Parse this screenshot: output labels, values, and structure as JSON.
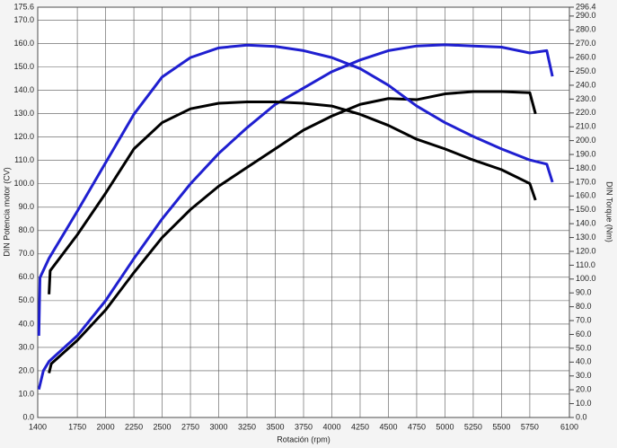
{
  "chart_data": {
    "type": "line",
    "xlabel": "Rotación (rpm)",
    "ylabel": "DIN Potencia motor (CV)",
    "y2label": "DIN Torque (Nm)",
    "xlim": [
      1400,
      6100
    ],
    "xticks": [
      1400,
      1750,
      2000,
      2250,
      2500,
      2750,
      3000,
      3250,
      3500,
      3750,
      4000,
      4250,
      4500,
      4750,
      5000,
      5250,
      5500,
      5750,
      6100
    ],
    "ylim": [
      0,
      175.6
    ],
    "yticks": [
      {
        "value": 0,
        "label": "0.0"
      },
      {
        "value": 10,
        "label": "10.0"
      },
      {
        "value": 20,
        "label": "20.0"
      },
      {
        "value": 30,
        "label": "30.0"
      },
      {
        "value": 40,
        "label": "40.0"
      },
      {
        "value": 50,
        "label": "50.0"
      },
      {
        "value": 60,
        "label": "60.0"
      },
      {
        "value": 70,
        "label": "70.0"
      },
      {
        "value": 80,
        "label": "80.0"
      },
      {
        "value": 90,
        "label": "90.0"
      },
      {
        "value": 100,
        "label": "100.0"
      },
      {
        "value": 110,
        "label": "110.0"
      },
      {
        "value": 120,
        "label": "120.0"
      },
      {
        "value": 130,
        "label": "130.0"
      },
      {
        "value": 140,
        "label": "140.0"
      },
      {
        "value": 150,
        "label": "150.0"
      },
      {
        "value": 160,
        "label": "160.0"
      },
      {
        "value": 170,
        "label": "170.0"
      },
      175.6
    ],
    "y2lim": [
      0,
      296.4
    ],
    "y2ticks": [
      {
        "value": 0,
        "label": "0.0"
      },
      {
        "value": 10,
        "label": "10.0"
      },
      {
        "value": 20,
        "label": "20.0"
      },
      {
        "value": 30,
        "label": "30.0"
      },
      {
        "value": 40,
        "label": "40.0"
      },
      {
        "value": 50,
        "label": "50.0"
      },
      {
        "value": 60,
        "label": "60.0"
      },
      {
        "value": 70,
        "label": "70.0"
      },
      {
        "value": 80,
        "label": "80.0"
      },
      {
        "value": 90,
        "label": "90.0"
      },
      {
        "value": 100,
        "label": "100.0"
      },
      {
        "value": 110,
        "label": "110.0"
      },
      {
        "value": 120,
        "label": "120.0"
      },
      {
        "value": 130,
        "label": "130.0"
      },
      {
        "value": 140,
        "label": "140.0"
      },
      {
        "value": 150,
        "label": "150.0"
      },
      {
        "value": 160,
        "label": "160.0"
      },
      {
        "value": 170,
        "label": "170.0"
      },
      {
        "value": 180,
        "label": "180.0"
      },
      {
        "value": 190,
        "label": "190.0"
      },
      {
        "value": 200,
        "label": "200.0"
      },
      {
        "value": 210,
        "label": "210.0"
      },
      {
        "value": 220,
        "label": "220.0"
      },
      {
        "value": 230,
        "label": "230.0"
      },
      {
        "value": 240,
        "label": "240.0"
      },
      {
        "value": 250,
        "label": "250.0"
      },
      {
        "value": 260,
        "label": "260.0"
      },
      {
        "value": 270,
        "label": "270.0"
      },
      {
        "value": 280,
        "label": "280.0"
      },
      {
        "value": 290,
        "label": "290.0"
      },
      296.4
    ],
    "grid": true,
    "series": [
      {
        "color": "#1f1fd0",
        "axis": "y",
        "x": [
          1410,
          1450,
          1500,
          1750,
          2000,
          2250,
          2500,
          2750,
          3000,
          3250,
          3500,
          3750,
          4000,
          4250,
          4500,
          4750,
          5000,
          5250,
          5500,
          5750,
          5900,
          5950
        ],
        "values": [
          12,
          20,
          24,
          35,
          50,
          68,
          85,
          100,
          113,
          124,
          134,
          141,
          148,
          153,
          157,
          159,
          159.5,
          159,
          158.5,
          156,
          157,
          146
        ]
      },
      {
        "color": "#000000",
        "axis": "y",
        "x": [
          1500,
          1520,
          1750,
          2000,
          2250,
          2500,
          2750,
          3000,
          3250,
          3500,
          3750,
          4000,
          4250,
          4500,
          4750,
          5000,
          5250,
          5500,
          5750,
          5800
        ],
        "values": [
          19,
          23,
          33,
          46,
          62,
          77,
          89,
          99,
          107,
          115,
          123,
          129,
          134,
          136.5,
          136,
          138.5,
          139.5,
          139.5,
          139,
          130
        ]
      },
      {
        "color": "#1f1fd0",
        "axis": "y2",
        "x": [
          1410,
          1420,
          1500,
          1750,
          2000,
          2250,
          2500,
          2750,
          3000,
          3250,
          3500,
          3750,
          4000,
          4250,
          4500,
          4750,
          5000,
          5250,
          5500,
          5750,
          5900,
          5950
        ],
        "values": [
          59,
          101,
          115,
          149,
          184,
          219,
          246,
          260,
          267,
          269,
          268,
          265,
          260,
          252,
          240,
          225,
          213,
          203,
          194,
          186,
          183,
          170
        ]
      },
      {
        "color": "#000000",
        "axis": "y2",
        "x": [
          1500,
          1510,
          1750,
          2000,
          2250,
          2500,
          2750,
          3000,
          3250,
          3500,
          3750,
          4000,
          4250,
          4500,
          4750,
          5000,
          5250,
          5500,
          5750,
          5800
        ],
        "values": [
          89,
          106,
          132,
          162,
          194,
          213,
          223,
          227,
          228,
          228,
          227,
          225,
          219,
          211,
          201,
          194,
          186,
          179,
          169,
          157
        ]
      }
    ]
  }
}
